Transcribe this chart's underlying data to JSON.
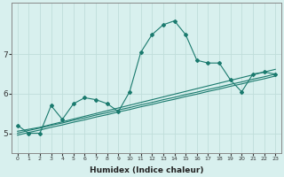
{
  "xlabel": "Humidex (Indice chaleur)",
  "background_color": "#d8f0ee",
  "grid_color": "#c0deda",
  "line_color": "#1a7a6e",
  "x": [
    0,
    1,
    2,
    3,
    4,
    5,
    6,
    7,
    8,
    9,
    10,
    11,
    12,
    13,
    14,
    15,
    16,
    17,
    18,
    19,
    20,
    21,
    22,
    23
  ],
  "y_main": [
    5.2,
    5.0,
    5.0,
    5.7,
    5.35,
    5.75,
    5.9,
    5.85,
    5.75,
    5.55,
    6.05,
    7.05,
    7.5,
    7.75,
    7.85,
    7.5,
    6.85,
    6.78,
    6.78,
    6.35,
    6.05,
    6.5,
    6.55,
    6.5
  ],
  "y_line1": [
    5.05,
    5.1,
    5.15,
    5.22,
    5.29,
    5.36,
    5.43,
    5.5,
    5.57,
    5.64,
    5.71,
    5.78,
    5.85,
    5.92,
    5.99,
    6.06,
    6.13,
    6.2,
    6.27,
    6.34,
    6.41,
    6.48,
    6.55,
    6.62
  ],
  "y_line2": [
    5.0,
    5.07,
    5.13,
    5.2,
    5.26,
    5.33,
    5.39,
    5.46,
    5.52,
    5.59,
    5.65,
    5.72,
    5.78,
    5.85,
    5.91,
    5.98,
    6.04,
    6.11,
    6.17,
    6.24,
    6.3,
    6.37,
    6.43,
    6.5
  ],
  "y_line3": [
    4.95,
    5.02,
    5.08,
    5.15,
    5.21,
    5.28,
    5.34,
    5.41,
    5.47,
    5.54,
    5.6,
    5.67,
    5.73,
    5.8,
    5.86,
    5.93,
    5.99,
    6.06,
    6.12,
    6.19,
    6.25,
    6.32,
    6.38,
    6.45
  ],
  "ylim": [
    4.5,
    8.3
  ],
  "yticks": [
    5,
    6,
    7
  ],
  "xlim": [
    -0.5,
    23.5
  ]
}
